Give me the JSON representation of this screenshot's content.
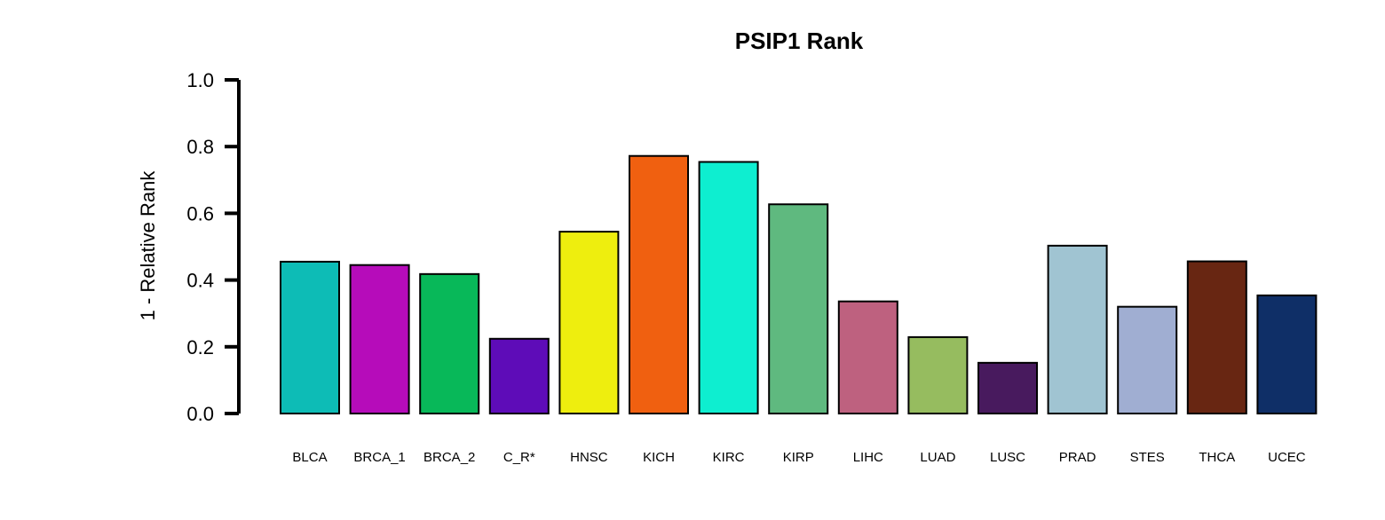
{
  "chart_data": {
    "type": "bar",
    "title": "PSIP1 Rank",
    "xlabel": "",
    "ylabel": "1 - Relative Rank",
    "ylim": [
      0,
      1.0
    ],
    "yticks": [
      "0.0",
      "0.2",
      "0.4",
      "0.6",
      "0.8",
      "1.0"
    ],
    "grid": false,
    "categories": [
      "BLCA",
      "BRCA_1",
      "BRCA_2",
      "C_R*",
      "HNSC",
      "KICH",
      "KIRC",
      "KIRP",
      "LIHC",
      "LUAD",
      "LUSC",
      "PRAD",
      "STES",
      "THCA",
      "UCEC"
    ],
    "values": [
      0.455,
      0.445,
      0.418,
      0.224,
      0.545,
      0.772,
      0.754,
      0.627,
      0.336,
      0.229,
      0.152,
      0.503,
      0.32,
      0.456,
      0.354
    ],
    "colors": [
      "#0DBCB6",
      "#B60CBA",
      "#08B859",
      "#5E0CB8",
      "#EEEE0E",
      "#F06010",
      "#0EEED0",
      "#5FB97F",
      "#BE617F",
      "#96BC5F",
      "#481A5E",
      "#A0C4D2",
      "#A0AED2",
      "#682612",
      "#0F2F67"
    ]
  }
}
